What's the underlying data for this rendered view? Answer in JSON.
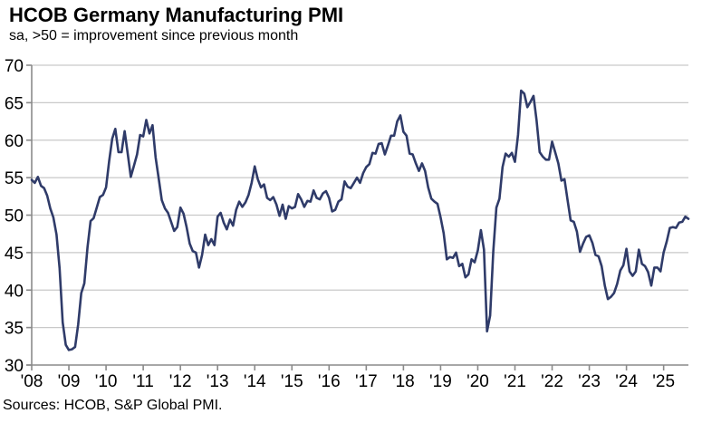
{
  "header": {
    "title": "HCOB Germany Manufacturing PMI",
    "subtitle": "sa, >50 = improvement since previous month"
  },
  "footer": {
    "source": "Sources: HCOB, S&P Global PMI."
  },
  "colors": {
    "line": "#2f3b69",
    "grid": "#c9c9c9",
    "axis": "#8a8a8a",
    "text": "#000000"
  },
  "chart_data": {
    "type": "line",
    "title": "HCOB Germany Manufacturing PMI",
    "subtitle": "sa, >50 = improvement since previous month",
    "xlabel": "",
    "ylabel": "",
    "ylim": [
      30,
      70
    ],
    "y_ticks": [
      30,
      35,
      40,
      45,
      50,
      55,
      60,
      65,
      70
    ],
    "x_ticks_years": [
      2008,
      2009,
      2010,
      2011,
      2012,
      2013,
      2014,
      2015,
      2016,
      2017,
      2018,
      2019,
      2020,
      2021,
      2022,
      2023,
      2024,
      2025
    ],
    "x_tick_labels": [
      "'08",
      "'09",
      "'10",
      "'11",
      "'12",
      "'13",
      "'14",
      "'15",
      "'16",
      "'17",
      "'18",
      "'19",
      "'20",
      "'21",
      "'22",
      "'23",
      "'24",
      "'25"
    ],
    "grid": "horizontal-only",
    "legend": "none",
    "threshold_note": ">50 = improvement since previous month",
    "series": [
      {
        "name": "HCOB Germany Manufacturing PMI (sa)",
        "frequency": "monthly",
        "start": "2008-01",
        "end": "2025-09",
        "values": [
          54.7,
          54.3,
          55.1,
          53.9,
          53.6,
          52.6,
          50.9,
          49.7,
          47.4,
          42.9,
          35.7,
          32.7,
          32.0,
          32.1,
          32.4,
          35.4,
          39.6,
          40.9,
          45.7,
          49.2,
          49.6,
          51.0,
          52.4,
          52.7,
          53.7,
          57.2,
          60.2,
          61.5,
          58.4,
          58.4,
          61.2,
          58.2,
          55.1,
          56.6,
          58.1,
          60.7,
          60.5,
          62.7,
          60.9,
          62.0,
          57.7,
          54.9,
          52.0,
          50.9,
          50.3,
          49.1,
          47.9,
          48.4,
          51.0,
          50.2,
          48.4,
          46.2,
          45.2,
          45.0,
          43.0,
          44.7,
          47.4,
          46.0,
          46.8,
          46.0,
          49.8,
          50.3,
          49.0,
          48.1,
          49.4,
          48.6,
          50.7,
          51.8,
          51.1,
          51.7,
          52.7,
          54.3,
          56.5,
          54.8,
          53.7,
          54.1,
          52.3,
          52.0,
          52.4,
          51.4,
          49.9,
          51.4,
          49.5,
          51.2,
          50.9,
          51.1,
          52.8,
          52.1,
          51.1,
          51.9,
          51.8,
          53.3,
          52.3,
          52.1,
          52.9,
          53.2,
          52.3,
          50.5,
          50.7,
          51.8,
          52.1,
          54.5,
          53.8,
          53.6,
          54.3,
          55.0,
          54.3,
          55.6,
          56.4,
          56.8,
          58.3,
          58.2,
          59.5,
          59.6,
          58.1,
          59.3,
          60.6,
          60.6,
          62.5,
          63.3,
          61.1,
          60.6,
          58.2,
          58.1,
          56.9,
          55.9,
          56.9,
          55.9,
          53.7,
          52.2,
          51.8,
          51.5,
          49.7,
          47.6,
          44.1,
          44.4,
          44.3,
          45.0,
          43.2,
          43.5,
          41.7,
          42.1,
          44.1,
          43.7,
          45.3,
          48.0,
          45.4,
          34.5,
          36.6,
          45.2,
          51.0,
          52.2,
          56.4,
          58.2,
          57.8,
          58.3,
          57.1,
          60.7,
          66.6,
          66.2,
          64.4,
          65.1,
          65.9,
          62.6,
          58.4,
          57.8,
          57.4,
          57.4,
          59.8,
          58.4,
          56.9,
          54.6,
          54.8,
          52.0,
          49.3,
          49.1,
          47.8,
          45.1,
          46.2,
          47.1,
          47.3,
          46.3,
          44.7,
          44.5,
          43.2,
          40.6,
          38.8,
          39.1,
          39.6,
          40.8,
          42.6,
          43.3,
          45.5,
          42.5,
          41.9,
          42.5,
          45.4,
          43.5,
          43.2,
          42.4,
          40.6,
          43.0,
          43.0,
          42.5,
          45.0,
          46.5,
          48.3,
          48.4,
          48.3,
          49.0,
          49.1,
          49.8,
          49.5
        ]
      }
    ]
  }
}
